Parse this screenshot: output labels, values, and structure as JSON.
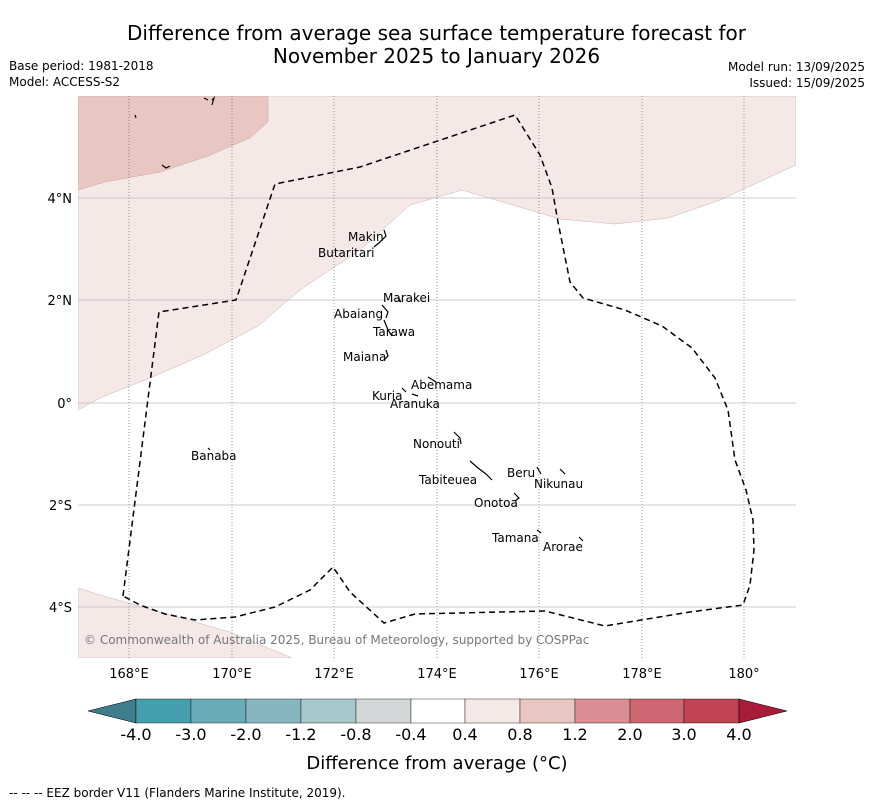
{
  "title": {
    "line1": "Difference from average sea surface temperature forecast for",
    "line2": "November 2025 to January 2026"
  },
  "meta_left": {
    "base_period": "Base period: 1981-2018",
    "model": "Model: ACCESS-S2"
  },
  "meta_right": {
    "model_run": "Model run: 13/09/2025",
    "issued": "Issued: 15/09/2025"
  },
  "map": {
    "lon_ticks": [
      "168°E",
      "170°E",
      "172°E",
      "174°E",
      "176°E",
      "178°E",
      "180°"
    ],
    "lat_ticks": [
      "4°N",
      "2°N",
      "0°",
      "2°S",
      "4°S"
    ],
    "places": [
      {
        "name": "Makin"
      },
      {
        "name": "Butaritari"
      },
      {
        "name": "Marakei"
      },
      {
        "name": "Abaiang"
      },
      {
        "name": "Tarawa"
      },
      {
        "name": "Maiana"
      },
      {
        "name": "Abemama"
      },
      {
        "name": "Kuria"
      },
      {
        "name": "Aranuka"
      },
      {
        "name": "Nonouti"
      },
      {
        "name": "Banaba"
      },
      {
        "name": "Beru"
      },
      {
        "name": "Nikunau"
      },
      {
        "name": "Tabiteuea"
      },
      {
        "name": "Onotoa"
      },
      {
        "name": "Tamana"
      },
      {
        "name": "Arorae"
      }
    ],
    "copyright": "© Commonwealth of Australia 2025, Bureau of Meteorology, supported by COSPPac",
    "colors": {
      "band_0_4_to_0_8": "#f5e9e8",
      "band_0_8_to_1_2": "#e8c7c2",
      "eez": "#000000"
    }
  },
  "colorbar": {
    "labels": [
      "-4.0",
      "-3.0",
      "-2.0",
      "-1.2",
      "-0.8",
      "-0.4",
      "0.4",
      "0.8",
      "1.2",
      "2.0",
      "3.0",
      "4.0"
    ],
    "colors": [
      "#3d7d8c",
      "#469fae",
      "#69acb8",
      "#88b6c0",
      "#a7c8cc",
      "#d4d7d8",
      "#ffffff",
      "#f5e9e8",
      "#e8c7c2",
      "#d98e96",
      "#cd6872",
      "#c14453",
      "#a81c39"
    ],
    "title": "Difference from average (°C)"
  },
  "footer": "--  --  -- EEZ border V11 (Flanders Marine Institute, 2019)."
}
